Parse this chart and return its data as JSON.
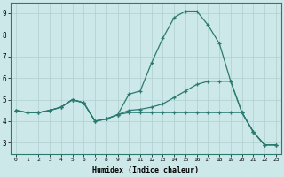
{
  "xlabel": "Humidex (Indice chaleur)",
  "xlim": [
    -0.5,
    23.5
  ],
  "ylim": [
    2.5,
    9.5
  ],
  "yticks": [
    3,
    4,
    5,
    6,
    7,
    8,
    9
  ],
  "xticks": [
    0,
    1,
    2,
    3,
    4,
    5,
    6,
    7,
    8,
    9,
    10,
    11,
    12,
    13,
    14,
    15,
    16,
    17,
    18,
    19,
    20,
    21,
    22,
    23
  ],
  "line_color": "#2a7a70",
  "bg_color": "#cce8e8",
  "grid_color": "#b0cfcf",
  "line1_x": [
    0,
    1,
    2,
    3,
    4,
    5,
    6,
    7,
    8,
    9,
    10,
    11,
    12,
    13,
    14,
    15,
    16,
    17,
    18,
    19,
    20,
    21,
    22,
    23
  ],
  "line1_y": [
    4.5,
    4.4,
    4.4,
    4.5,
    4.65,
    5.0,
    4.85,
    4.0,
    4.1,
    4.3,
    4.4,
    4.4,
    4.4,
    4.4,
    4.4,
    4.4,
    4.4,
    4.4,
    4.4,
    4.4,
    4.4,
    3.5,
    2.9,
    2.9
  ],
  "line2_x": [
    0,
    1,
    2,
    3,
    4,
    5,
    6,
    7,
    8,
    9,
    10,
    11,
    12,
    13,
    14,
    15,
    16,
    17,
    18,
    19,
    20,
    21,
    22,
    23
  ],
  "line2_y": [
    4.5,
    4.4,
    4.4,
    4.5,
    4.65,
    5.0,
    4.85,
    4.0,
    4.1,
    4.3,
    5.25,
    5.4,
    6.7,
    7.85,
    8.8,
    9.1,
    9.1,
    8.45,
    7.6,
    5.85,
    4.4,
    3.5,
    2.9,
    2.9
  ],
  "line3_x": [
    0,
    1,
    2,
    3,
    4,
    5,
    6,
    7,
    8,
    9,
    10,
    11,
    12,
    13,
    14,
    15,
    16,
    17,
    18,
    19,
    20,
    21,
    22,
    23
  ],
  "line3_y": [
    4.5,
    4.4,
    4.4,
    4.5,
    4.65,
    5.0,
    4.85,
    4.0,
    4.1,
    4.3,
    4.5,
    4.55,
    4.65,
    4.8,
    5.1,
    5.4,
    5.7,
    5.85,
    5.85,
    5.85,
    4.4,
    3.5,
    2.9,
    2.9
  ]
}
